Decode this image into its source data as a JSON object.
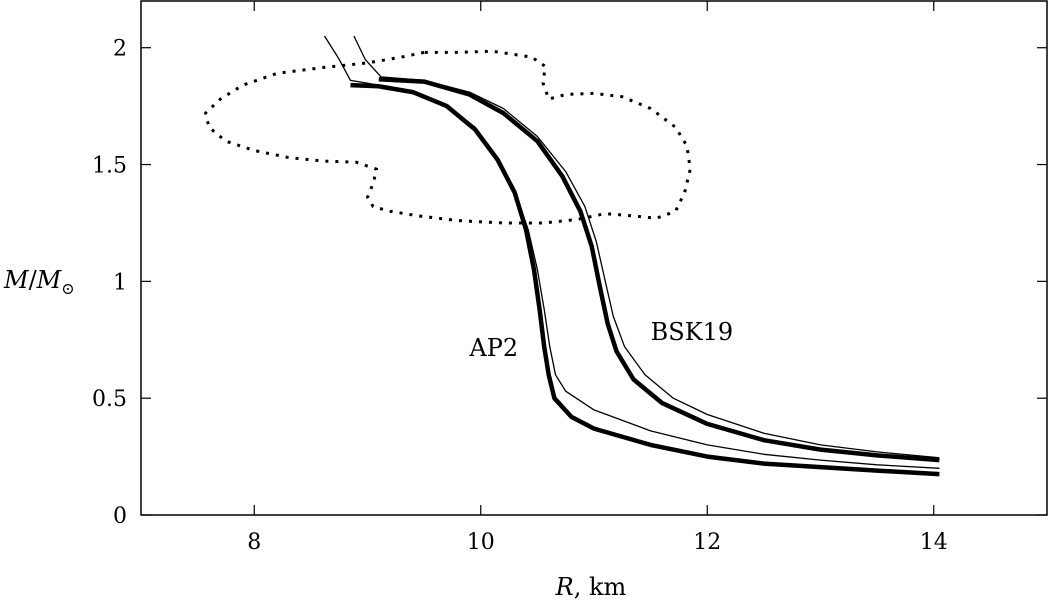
{
  "chart_data": {
    "type": "line",
    "xlabel_parts": [
      "R",
      ", km"
    ],
    "ylabel_parts": [
      "M",
      "/",
      "M",
      "⊙"
    ],
    "xlim": [
      7,
      15
    ],
    "ylim": [
      0,
      2.2
    ],
    "x_ticks": [
      8,
      10,
      12,
      14
    ],
    "y_ticks": [
      0,
      0.5,
      1,
      1.5,
      2
    ],
    "x_tick_labels": [
      "8",
      "10",
      "12",
      "14"
    ],
    "y_tick_labels": [
      "0",
      "0.5",
      "1",
      "1.5",
      "2"
    ],
    "grid": false,
    "legend": "none",
    "annotations": [
      {
        "text": "AP2",
        "x": 9.9,
        "y": 0.68
      },
      {
        "text": "BSK19",
        "x": 11.5,
        "y": 0.75
      }
    ],
    "series": [
      {
        "style": "thick",
        "points": [
          [
            8.85,
            1.84
          ],
          [
            9.1,
            1.835
          ],
          [
            9.4,
            1.81
          ],
          [
            9.7,
            1.75
          ],
          [
            9.95,
            1.65
          ],
          [
            10.15,
            1.52
          ],
          [
            10.3,
            1.38
          ],
          [
            10.4,
            1.22
          ],
          [
            10.47,
            1.05
          ],
          [
            10.52,
            0.88
          ],
          [
            10.56,
            0.72
          ],
          [
            10.6,
            0.6
          ],
          [
            10.65,
            0.5
          ],
          [
            10.8,
            0.42
          ],
          [
            11.0,
            0.37
          ],
          [
            11.5,
            0.3
          ],
          [
            12.0,
            0.25
          ],
          [
            12.5,
            0.22
          ],
          [
            13.0,
            0.205
          ],
          [
            13.5,
            0.19
          ],
          [
            14.05,
            0.175
          ]
        ]
      },
      {
        "style": "thin",
        "points": [
          [
            8.62,
            2.05
          ],
          [
            8.75,
            1.95
          ],
          [
            8.85,
            1.86
          ],
          [
            9.1,
            1.84
          ],
          [
            9.4,
            1.81
          ],
          [
            9.7,
            1.75
          ],
          [
            9.95,
            1.66
          ],
          [
            10.15,
            1.53
          ],
          [
            10.3,
            1.39
          ],
          [
            10.42,
            1.22
          ],
          [
            10.5,
            1.05
          ],
          [
            10.56,
            0.88
          ],
          [
            10.61,
            0.72
          ],
          [
            10.66,
            0.6
          ],
          [
            10.75,
            0.53
          ],
          [
            11.0,
            0.45
          ],
          [
            11.5,
            0.36
          ],
          [
            12.0,
            0.3
          ],
          [
            12.5,
            0.26
          ],
          [
            13.0,
            0.235
          ],
          [
            13.5,
            0.215
          ],
          [
            14.05,
            0.2
          ]
        ]
      },
      {
        "style": "thick",
        "points": [
          [
            9.1,
            1.865
          ],
          [
            9.5,
            1.855
          ],
          [
            9.9,
            1.8
          ],
          [
            10.2,
            1.72
          ],
          [
            10.5,
            1.6
          ],
          [
            10.72,
            1.45
          ],
          [
            10.88,
            1.3
          ],
          [
            10.98,
            1.15
          ],
          [
            11.05,
            0.98
          ],
          [
            11.12,
            0.82
          ],
          [
            11.2,
            0.7
          ],
          [
            11.35,
            0.58
          ],
          [
            11.6,
            0.48
          ],
          [
            12.0,
            0.39
          ],
          [
            12.5,
            0.32
          ],
          [
            13.0,
            0.28
          ],
          [
            13.5,
            0.255
          ],
          [
            14.05,
            0.235
          ]
        ]
      },
      {
        "style": "thin",
        "points": [
          [
            8.88,
            2.05
          ],
          [
            8.98,
            1.95
          ],
          [
            9.12,
            1.875
          ],
          [
            9.5,
            1.86
          ],
          [
            9.9,
            1.81
          ],
          [
            10.2,
            1.74
          ],
          [
            10.5,
            1.62
          ],
          [
            10.75,
            1.47
          ],
          [
            10.92,
            1.32
          ],
          [
            11.02,
            1.17
          ],
          [
            11.1,
            1.0
          ],
          [
            11.17,
            0.85
          ],
          [
            11.27,
            0.72
          ],
          [
            11.45,
            0.6
          ],
          [
            11.7,
            0.5
          ],
          [
            12.0,
            0.43
          ],
          [
            12.5,
            0.35
          ],
          [
            13.0,
            0.3
          ],
          [
            13.5,
            0.27
          ],
          [
            14.05,
            0.245
          ]
        ]
      },
      {
        "style": "dotted",
        "points": [
          [
            9.5,
            1.98
          ],
          [
            9.3,
            1.96
          ],
          [
            9.0,
            1.935
          ],
          [
            8.6,
            1.915
          ],
          [
            8.2,
            1.89
          ],
          [
            7.9,
            1.84
          ],
          [
            7.7,
            1.78
          ],
          [
            7.57,
            1.72
          ],
          [
            7.6,
            1.66
          ],
          [
            7.75,
            1.6
          ],
          [
            8.0,
            1.56
          ],
          [
            8.3,
            1.53
          ],
          [
            8.6,
            1.515
          ],
          [
            8.9,
            1.51
          ],
          [
            9.08,
            1.48
          ],
          [
            9.05,
            1.42
          ],
          [
            9.0,
            1.36
          ],
          [
            9.05,
            1.32
          ],
          [
            9.2,
            1.3
          ],
          [
            9.45,
            1.28
          ],
          [
            9.8,
            1.26
          ],
          [
            10.2,
            1.25
          ],
          [
            10.55,
            1.25
          ],
          [
            10.85,
            1.265
          ],
          [
            11.1,
            1.29
          ],
          [
            11.35,
            1.28
          ],
          [
            11.55,
            1.27
          ],
          [
            11.72,
            1.3
          ],
          [
            11.8,
            1.38
          ],
          [
            11.85,
            1.48
          ],
          [
            11.82,
            1.58
          ],
          [
            11.72,
            1.66
          ],
          [
            11.5,
            1.74
          ],
          [
            11.25,
            1.79
          ],
          [
            11.0,
            1.805
          ],
          [
            10.75,
            1.8
          ],
          [
            10.6,
            1.78
          ],
          [
            10.55,
            1.85
          ],
          [
            10.57,
            1.92
          ],
          [
            10.45,
            1.96
          ],
          [
            10.1,
            1.985
          ],
          [
            9.8,
            1.98
          ],
          [
            9.5,
            1.98
          ]
        ]
      }
    ]
  }
}
